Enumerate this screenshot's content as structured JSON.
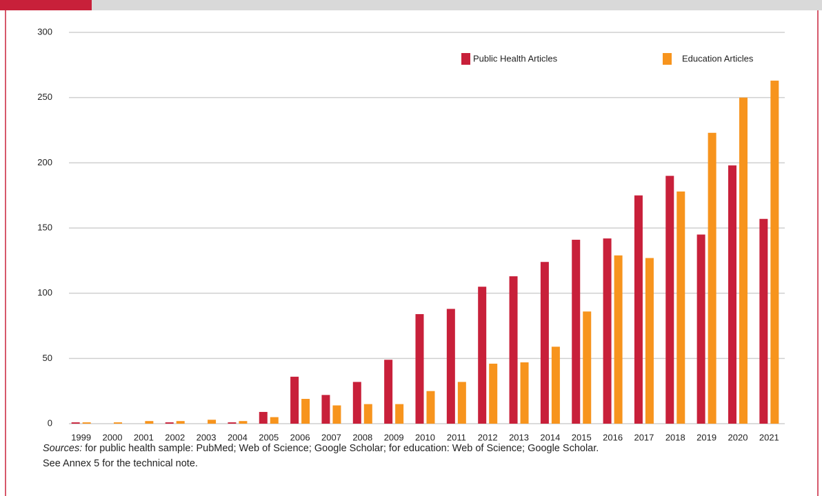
{
  "chart_data": {
    "type": "bar",
    "categories": [
      "1999",
      "2000",
      "2001",
      "2002",
      "2003",
      "2004",
      "2005",
      "2006",
      "2007",
      "2008",
      "2009",
      "2010",
      "2011",
      "2012",
      "2013",
      "2014",
      "2015",
      "2016",
      "2017",
      "2018",
      "2019",
      "2020",
      "2021"
    ],
    "series": [
      {
        "name": "Public Health Articles",
        "color": "#c8203a",
        "values": [
          1,
          0,
          0,
          1,
          0,
          1,
          9,
          36,
          22,
          32,
          49,
          84,
          88,
          105,
          113,
          124,
          141,
          142,
          175,
          190,
          145,
          198,
          157
        ]
      },
      {
        "name": "Education Articles",
        "color": "#f7941d",
        "values": [
          1,
          1,
          2,
          2,
          3,
          2,
          5,
          19,
          14,
          15,
          15,
          25,
          32,
          46,
          47,
          59,
          86,
          129,
          127,
          178,
          223,
          250,
          263
        ]
      }
    ],
    "ylim": [
      0,
      300
    ],
    "yticks": [
      0,
      50,
      100,
      150,
      200,
      250,
      300
    ],
    "grid": true,
    "legend": "top-right",
    "sources_label": "Sources:",
    "sources_text": "for public health sample: PubMed; Web of Science; Google Scholar; for education: Web of Science; Google Scholar.",
    "note": "See Annex 5 for the technical note."
  }
}
